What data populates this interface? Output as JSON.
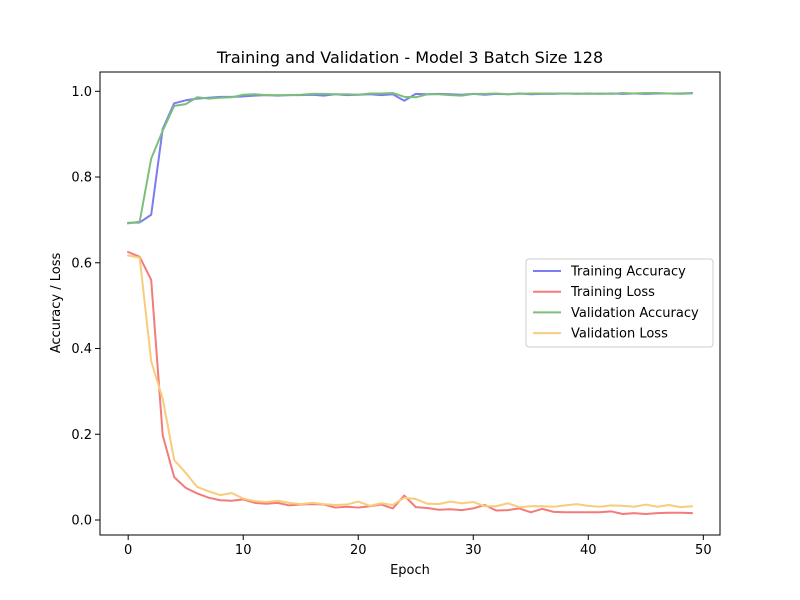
{
  "chart_data": {
    "type": "line",
    "title": "Training and Validation - Model 3 Batch Size 128",
    "xlabel": "Epoch",
    "ylabel": "Accuracy / Loss",
    "xlim": [
      -2.45,
      51.45
    ],
    "ylim": [
      -0.035,
      1.045
    ],
    "x_ticks": [
      0,
      10,
      20,
      30,
      40,
      50
    ],
    "y_ticks": [
      0.0,
      0.2,
      0.4,
      0.6,
      0.8,
      1.0
    ],
    "x_tick_labels": [
      "0",
      "10",
      "20",
      "30",
      "40",
      "50"
    ],
    "y_tick_labels": [
      "0.0",
      "0.2",
      "0.4",
      "0.6",
      "0.8",
      "1.0"
    ],
    "grid": false,
    "legend_position": "center-right",
    "x": [
      0,
      1,
      2,
      3,
      4,
      5,
      6,
      7,
      8,
      9,
      10,
      11,
      12,
      13,
      14,
      15,
      16,
      17,
      18,
      19,
      20,
      21,
      22,
      23,
      24,
      25,
      26,
      27,
      28,
      29,
      30,
      31,
      32,
      33,
      34,
      35,
      36,
      37,
      38,
      39,
      40,
      41,
      42,
      43,
      44,
      45,
      46,
      47,
      48,
      49
    ],
    "series": [
      {
        "name": "Training Accuracy",
        "color": "#7b7bf2",
        "values": [
          0.693,
          0.694,
          0.712,
          0.912,
          0.972,
          0.979,
          0.983,
          0.985,
          0.987,
          0.987,
          0.988,
          0.99,
          0.991,
          0.99,
          0.991,
          0.991,
          0.992,
          0.99,
          0.993,
          0.991,
          0.992,
          0.993,
          0.991,
          0.993,
          0.978,
          0.994,
          0.993,
          0.994,
          0.993,
          0.992,
          0.994,
          0.992,
          0.994,
          0.993,
          0.995,
          0.993,
          0.994,
          0.994,
          0.995,
          0.994,
          0.995,
          0.994,
          0.995,
          0.994,
          0.995,
          0.994,
          0.995,
          0.995,
          0.995,
          0.996
        ]
      },
      {
        "name": "Training Loss",
        "color": "#f27b7b",
        "values": [
          0.625,
          0.614,
          0.56,
          0.198,
          0.1,
          0.075,
          0.062,
          0.052,
          0.046,
          0.045,
          0.048,
          0.04,
          0.038,
          0.04,
          0.034,
          0.036,
          0.037,
          0.036,
          0.029,
          0.031,
          0.029,
          0.032,
          0.036,
          0.027,
          0.057,
          0.03,
          0.028,
          0.024,
          0.025,
          0.023,
          0.027,
          0.035,
          0.022,
          0.023,
          0.027,
          0.018,
          0.026,
          0.019,
          0.018,
          0.018,
          0.018,
          0.018,
          0.02,
          0.014,
          0.016,
          0.014,
          0.016,
          0.017,
          0.017,
          0.016
        ]
      },
      {
        "name": "Validation Accuracy",
        "color": "#7bbf7b",
        "values": [
          0.692,
          0.696,
          0.843,
          0.908,
          0.966,
          0.97,
          0.986,
          0.983,
          0.985,
          0.986,
          0.992,
          0.993,
          0.991,
          0.991,
          0.991,
          0.992,
          0.994,
          0.994,
          0.993,
          0.993,
          0.992,
          0.995,
          0.995,
          0.996,
          0.987,
          0.986,
          0.993,
          0.993,
          0.991,
          0.99,
          0.994,
          0.994,
          0.995,
          0.993,
          0.994,
          0.995,
          0.995,
          0.995,
          0.995,
          0.995,
          0.994,
          0.995,
          0.994,
          0.996,
          0.995,
          0.996,
          0.996,
          0.995,
          0.994,
          0.995
        ]
      },
      {
        "name": "Validation Loss",
        "color": "#f9cc7b",
        "values": [
          0.617,
          0.612,
          0.37,
          0.283,
          0.14,
          0.11,
          0.077,
          0.067,
          0.058,
          0.063,
          0.05,
          0.044,
          0.042,
          0.045,
          0.04,
          0.037,
          0.04,
          0.037,
          0.035,
          0.036,
          0.043,
          0.033,
          0.039,
          0.035,
          0.052,
          0.049,
          0.038,
          0.037,
          0.043,
          0.039,
          0.042,
          0.032,
          0.032,
          0.039,
          0.03,
          0.032,
          0.032,
          0.031,
          0.034,
          0.037,
          0.033,
          0.031,
          0.034,
          0.033,
          0.031,
          0.036,
          0.031,
          0.035,
          0.03,
          0.032
        ]
      }
    ]
  }
}
